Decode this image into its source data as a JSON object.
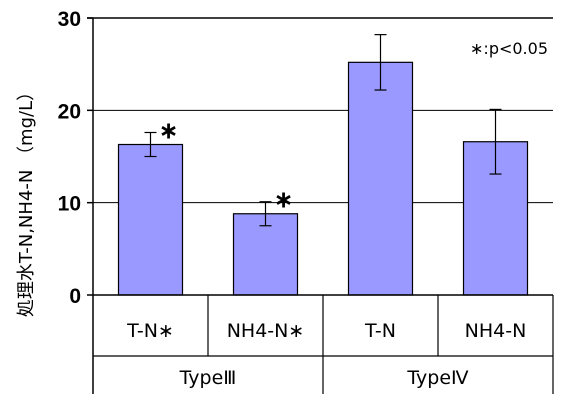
{
  "chart_data": {
    "type": "bar",
    "title": "",
    "ylabel": "処理水T-N,NH4-N （mg/L）",
    "xlabel": "",
    "ylim": [
      0,
      30
    ],
    "yticks": [
      "0",
      "10",
      "20",
      "30"
    ],
    "grid": true,
    "legend": "none",
    "bar_color": "#9999ff",
    "categories": [
      "T-N∗",
      "NH4-N∗",
      "T-N",
      "NH4-N"
    ],
    "groups": [
      {
        "label": "TypeⅢ",
        "span": [
          0,
          1
        ]
      },
      {
        "label": "TypeⅣ",
        "span": [
          2,
          3
        ]
      }
    ],
    "values": [
      16.3,
      8.8,
      25.2,
      16.6
    ],
    "errors": [
      1.3,
      1.3,
      3.0,
      3.5
    ],
    "significance": [
      "∗",
      "∗",
      "",
      ""
    ],
    "annotation": "∗:p<0.05"
  }
}
